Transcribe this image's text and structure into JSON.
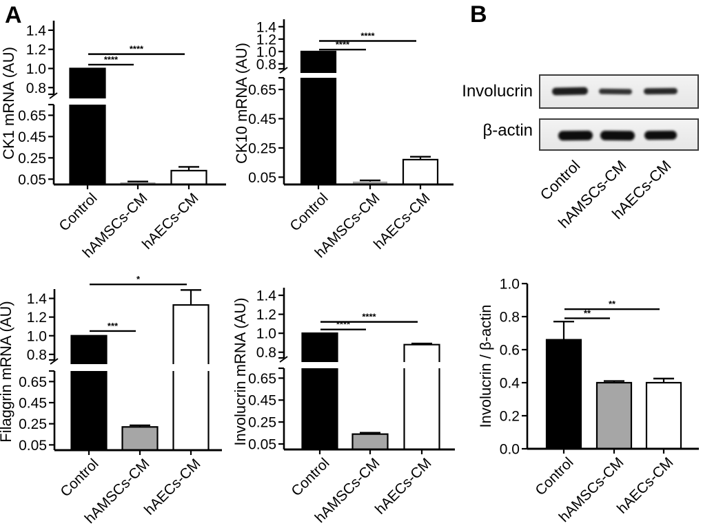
{
  "panels": {
    "a_label": "A",
    "b_label": "B"
  },
  "bar_colors": [
    "#000000",
    "#a6a6a6",
    "#ffffff"
  ],
  "axis_color": "#000000",
  "chart_data": [
    {
      "id": "ck1",
      "type": "bar",
      "ylabel": "CK1 mRNA (AU)",
      "broken_axis": true,
      "upper_ticks": [
        "0.8",
        "1.0",
        "1.2",
        "1.4"
      ],
      "lower_ticks": [
        "0.05",
        "0.25",
        "0.45",
        "0.65"
      ],
      "upper_range": [
        0.75,
        1.5
      ],
      "lower_range": [
        0,
        0.75
      ],
      "categories": [
        "Control",
        "hAMSCs-CM",
        "hAECs-CM"
      ],
      "values": [
        1.0,
        0.02,
        0.13
      ],
      "errors": [
        0,
        0.008,
        0.035
      ],
      "significance": [
        {
          "from": 0,
          "to": 1,
          "label": "****",
          "at": 1.04
        },
        {
          "from": 0,
          "to": 2,
          "label": "****",
          "at": 1.15
        }
      ]
    },
    {
      "id": "ck10",
      "type": "bar",
      "ylabel": "CK10 mRNA (AU)",
      "broken_axis": true,
      "upper_ticks": [
        "0.8",
        "1.0",
        "1.2",
        "1.4"
      ],
      "lower_ticks": [
        "0.05",
        "0.25",
        "0.45",
        "0.65"
      ],
      "upper_range": [
        0.75,
        1.5
      ],
      "lower_range": [
        0,
        0.75
      ],
      "categories": [
        "Control",
        "hAMSCs-CM",
        "hAECs-CM"
      ],
      "values": [
        1.0,
        0.02,
        0.17
      ],
      "errors": [
        0,
        0.008,
        0.02
      ],
      "significance": [
        {
          "from": 0,
          "to": 1,
          "label": "****",
          "at": 1.03
        },
        {
          "from": 0,
          "to": 2,
          "label": "****",
          "at": 1.17
        }
      ]
    },
    {
      "id": "filaggrin",
      "type": "bar",
      "ylabel": "Filaggrin mRNA (AU)",
      "broken_axis": true,
      "upper_ticks": [
        "0.8",
        "1.0",
        "1.2",
        "1.4"
      ],
      "lower_ticks": [
        "0.05",
        "0.25",
        "0.45",
        "0.65"
      ],
      "upper_range": [
        0.75,
        1.5
      ],
      "lower_range": [
        0,
        0.75
      ],
      "categories": [
        "Control",
        "hAMSCs-CM",
        "hAECs-CM"
      ],
      "values": [
        1.0,
        0.22,
        1.33
      ],
      "errors": [
        0,
        0.015,
        0.16
      ],
      "significance": [
        {
          "from": 0,
          "to": 1,
          "label": "***",
          "at": 1.05
        },
        {
          "from": 0,
          "to": 2,
          "label": "*",
          "at": 1.55
        }
      ]
    },
    {
      "id": "inv_mrna",
      "type": "bar",
      "ylabel": "Involucrin mRNA (AU)",
      "broken_axis": true,
      "upper_ticks": [
        "0.8",
        "1.0",
        "1.2",
        "1.4"
      ],
      "lower_ticks": [
        "0.05",
        "0.25",
        "0.45",
        "0.65"
      ],
      "upper_range": [
        0.75,
        1.5
      ],
      "lower_range": [
        0,
        0.75
      ],
      "categories": [
        "Control",
        "hAMSCs-CM",
        "hAECs-CM"
      ],
      "values": [
        1.0,
        0.14,
        0.88
      ],
      "errors": [
        0,
        0.012,
        0.012
      ],
      "significance": [
        {
          "from": 0,
          "to": 1,
          "label": "****",
          "at": 1.04
        },
        {
          "from": 0,
          "to": 2,
          "label": "****",
          "at": 1.12
        }
      ]
    },
    {
      "id": "inv_bactin",
      "type": "bar",
      "ylabel": "Involucrin / β-actin",
      "broken_axis": false,
      "ticks": [
        "0.0",
        "0.2",
        "0.4",
        "0.6",
        "0.8",
        "1.0"
      ],
      "ylim": [
        0,
        1.0
      ],
      "categories": [
        "Control",
        "hAMSCs-CM",
        "hAECs-CM"
      ],
      "values": [
        0.66,
        0.4,
        0.4
      ],
      "errors": [
        0.11,
        0.01,
        0.025
      ],
      "significance": [
        {
          "from": 0,
          "to": 1,
          "label": "**",
          "at": 0.79
        },
        {
          "from": 0,
          "to": 2,
          "label": "**",
          "at": 0.845
        }
      ]
    }
  ],
  "western_blot": {
    "rows": [
      {
        "label": "Involucrin"
      },
      {
        "label": "β-actin"
      }
    ],
    "lanes": [
      "Control",
      "hAMSCs-CM",
      "hAECs-CM"
    ]
  }
}
